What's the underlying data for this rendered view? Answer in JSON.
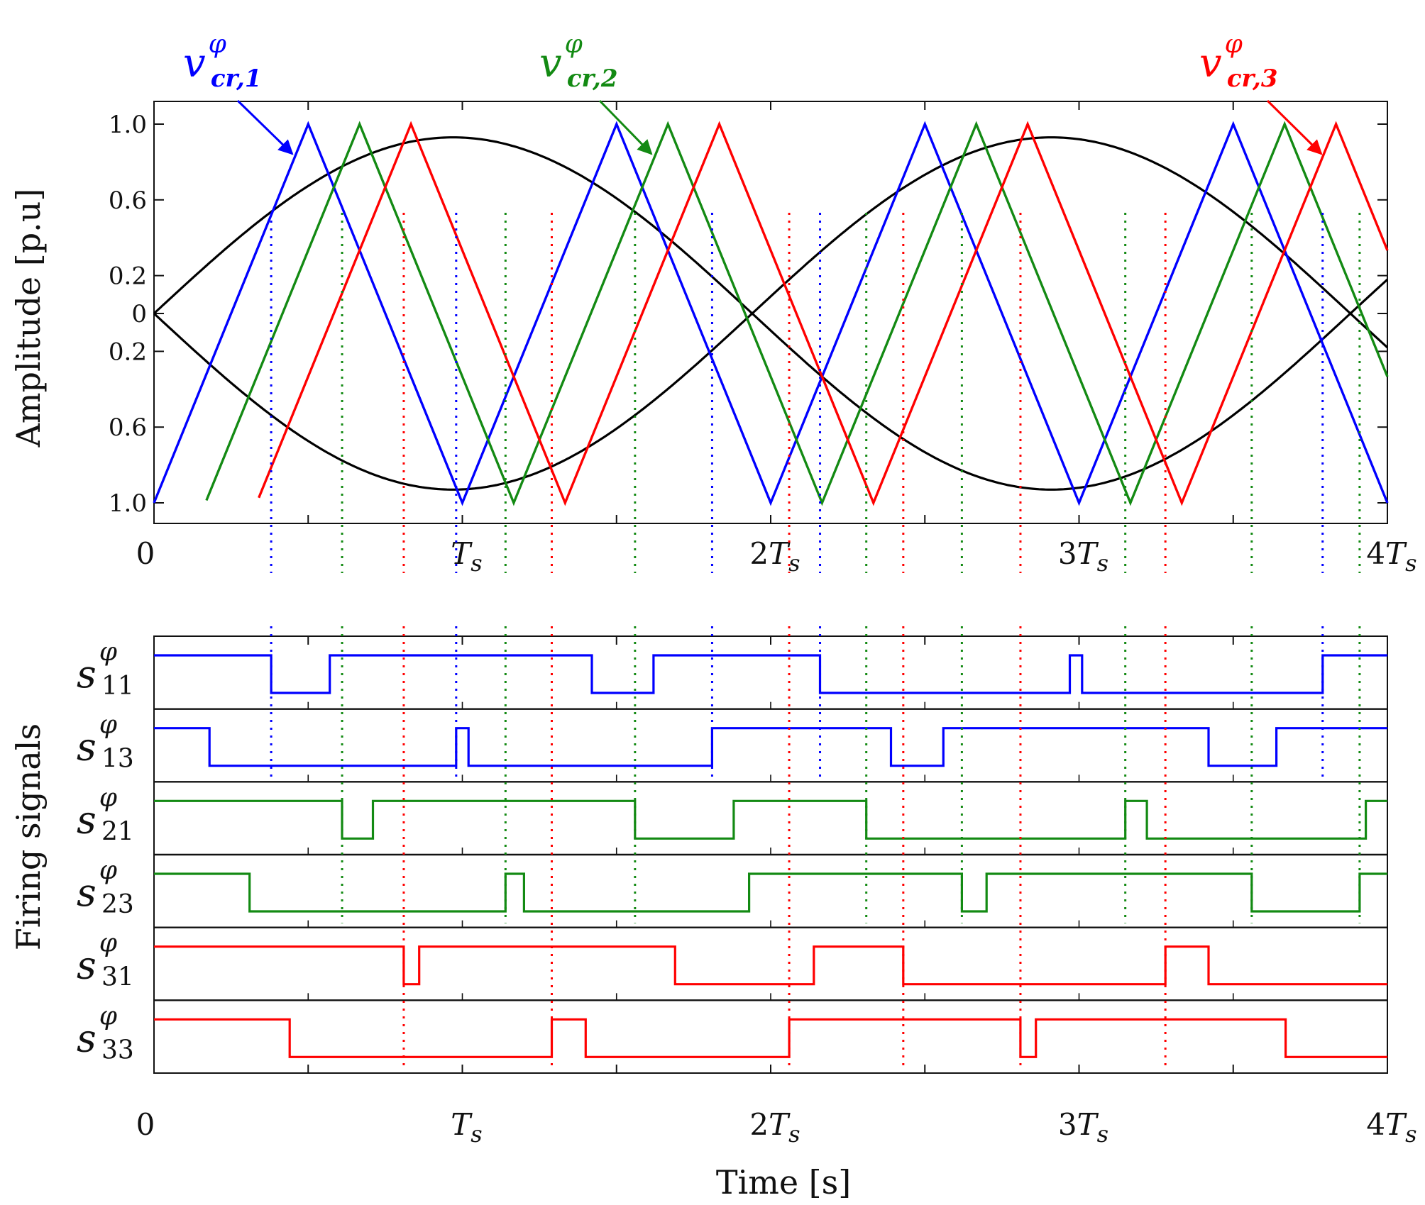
{
  "chart_data": {
    "type": "line",
    "title": "",
    "colors": {
      "carrier_1": "#0000ff",
      "carrier_2": "#138a13",
      "carrier_3": "#ff0000",
      "reference": "#000000"
    },
    "top_panel": {
      "ylabel": "Amplitude [p.u]",
      "ylim": [
        -1.05,
        1.05
      ],
      "xlim": [
        0,
        4
      ],
      "y_ticks": [
        {
          "value": 1.0,
          "label": "1.0"
        },
        {
          "value": 0.6,
          "label": "0.6"
        },
        {
          "value": 0.2,
          "label": "0.2"
        },
        {
          "value": 0.0,
          "label": "0"
        },
        {
          "value": -0.2,
          "label": "0.2"
        },
        {
          "value": -0.6,
          "label": "0.6"
        },
        {
          "value": -1.0,
          "label": "1.0"
        }
      ],
      "reference_amplitude": 0.93,
      "reference_period_ts": 4,
      "reference_end_value": 0.1,
      "carrier_period_ts": 1,
      "carrier_labels": [
        {
          "base": "v",
          "sup": "φ",
          "sub": "cr,1",
          "color": "#0000ff"
        },
        {
          "base": "v",
          "sup": "φ",
          "sub": "cr,2",
          "color": "#138a13"
        },
        {
          "base": "v",
          "sup": "φ",
          "sub": "cr,3",
          "color": "#ff0000"
        }
      ],
      "carriers": [
        {
          "name": "v_cr,1",
          "start_ts": 0.0,
          "phase_shift_ts": 0.0
        },
        {
          "name": "v_cr,2",
          "start_ts": 0.17,
          "phase_shift_ts": 0.1667
        },
        {
          "name": "v_cr,3",
          "start_ts": 0.34,
          "phase_shift_ts": 0.3333
        }
      ]
    },
    "bottom_panel": {
      "ylabel": "Firing signals",
      "xlabel": "Time [s]",
      "signals": [
        {
          "name": "s11",
          "base": "s",
          "sup": "φ",
          "sub": "11",
          "carrier": 1,
          "intervals": [
            [
              0,
              0.38
            ],
            [
              0.57,
              1.42
            ],
            [
              1.62,
              2.16
            ],
            [
              2.97,
              3.01
            ],
            [
              3.79,
              4.0
            ]
          ]
        },
        {
          "name": "s13",
          "base": "s",
          "sup": "φ",
          "sub": "13",
          "carrier": 1,
          "intervals": [
            [
              0,
              0.18
            ],
            [
              0.98,
              1.02
            ],
            [
              1.81,
              2.39
            ],
            [
              2.56,
              3.42
            ],
            [
              3.64,
              4.0
            ]
          ]
        },
        {
          "name": "s21",
          "base": "s",
          "sup": "φ",
          "sub": "21",
          "carrier": 2,
          "intervals": [
            [
              0,
              0.61
            ],
            [
              0.71,
              1.56
            ],
            [
              1.88,
              2.31
            ],
            [
              3.15,
              3.22
            ],
            [
              3.93,
              4.0
            ]
          ]
        },
        {
          "name": "s23",
          "base": "s",
          "sup": "φ",
          "sub": "23",
          "carrier": 2,
          "intervals": [
            [
              0,
              0.31
            ],
            [
              1.14,
              1.2
            ],
            [
              1.93,
              2.62
            ],
            [
              2.7,
              3.56
            ],
            [
              3.91,
              4.0
            ]
          ]
        },
        {
          "name": "s31",
          "base": "s",
          "sup": "φ",
          "sub": "31",
          "carrier": 3,
          "intervals": [
            [
              0,
              0.81
            ],
            [
              0.86,
              1.69
            ],
            [
              2.14,
              2.43
            ],
            [
              3.28,
              3.42
            ]
          ]
        },
        {
          "name": "s33",
          "base": "s",
          "sup": "φ",
          "sub": "33",
          "carrier": 3,
          "intervals": [
            [
              0,
              0.44
            ],
            [
              1.29,
              1.4
            ],
            [
              2.06,
              2.81
            ],
            [
              2.86,
              3.67
            ]
          ]
        }
      ]
    },
    "x_ticks_top": [
      {
        "value": 0,
        "coef": "0",
        "sym": ""
      },
      {
        "value": 1,
        "coef": "",
        "sym": "T",
        "sub": "s"
      },
      {
        "value": 2,
        "coef": "2",
        "sym": "T",
        "sub": "s"
      },
      {
        "value": 3,
        "coef": "3",
        "sym": "T",
        "sub": "s"
      },
      {
        "value": 4,
        "coef": "4",
        "sym": "T",
        "sub": "s"
      }
    ],
    "x_ticks_bottom": [
      {
        "value": 0,
        "coef": "0",
        "sym": ""
      },
      {
        "value": 1,
        "coef": "",
        "sym": "T",
        "sub": "s"
      },
      {
        "value": 2,
        "coef": "2",
        "sym": "T",
        "sub": "s"
      },
      {
        "value": 3,
        "coef": "3",
        "sym": "T",
        "sub": "s"
      },
      {
        "value": 4,
        "coef": "4",
        "sym": "T",
        "sub": "s"
      }
    ],
    "dotted_markers": [
      {
        "t": 0.38,
        "carrier": 1
      },
      {
        "t": 0.98,
        "carrier": 1
      },
      {
        "t": 1.81,
        "carrier": 1
      },
      {
        "t": 2.16,
        "carrier": 1
      },
      {
        "t": 3.79,
        "carrier": 1
      },
      {
        "t": 0.61,
        "carrier": 2
      },
      {
        "t": 1.14,
        "carrier": 2
      },
      {
        "t": 1.56,
        "carrier": 2
      },
      {
        "t": 2.31,
        "carrier": 2
      },
      {
        "t": 2.62,
        "carrier": 2
      },
      {
        "t": 3.15,
        "carrier": 2
      },
      {
        "t": 3.56,
        "carrier": 2
      },
      {
        "t": 3.91,
        "carrier": 2
      },
      {
        "t": 0.81,
        "carrier": 3
      },
      {
        "t": 1.29,
        "carrier": 3
      },
      {
        "t": 2.06,
        "carrier": 3
      },
      {
        "t": 2.43,
        "carrier": 3
      },
      {
        "t": 2.81,
        "carrier": 3
      },
      {
        "t": 3.28,
        "carrier": 3
      }
    ]
  }
}
